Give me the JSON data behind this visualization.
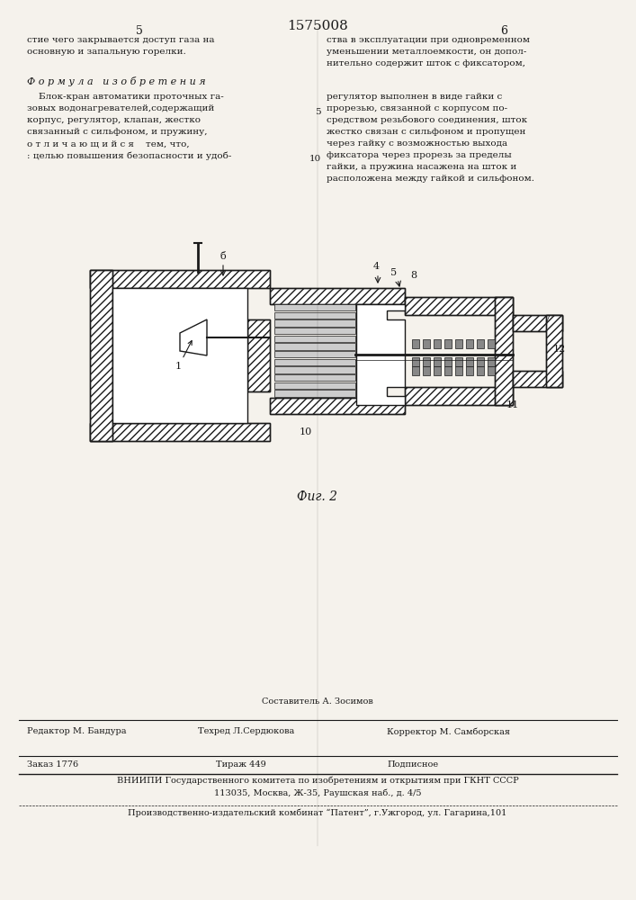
{
  "page_number_center": "1575008",
  "page_left": "5",
  "page_right": "6",
  "bg_color": "#f5f2ec",
  "text_color": "#1a1a1a",
  "title_text": "Ф о р м у л а   и з о б р е т е н и я",
  "left_col_lines": [
    "стие чего закрывается доступ газа на",
    "основную и запальную горелки."
  ],
  "right_col_lines_top": [
    "ства в эксплуатации при одновременном",
    "уменьшении металлоемкости, он допол-",
    "нительно содержит шток с фиксатором,"
  ],
  "formula_left_lines": [
    "    Блок-кран автоматики проточных га-",
    "зовых водонагревателей,содержащий",
    "корпус, регулятор, клапан, жестко",
    "связанный с сильфоном, и пружину,",
    "о т л и ч а ю щ и й с я    тем, что,",
    ": целью повышения безопасности и удоб-"
  ],
  "formula_right_lines": [
    "регулятор выполнен в виде гайки с",
    "прорезью, связанной с корпусом по-",
    "средством резьбового соединения, шток",
    "жестко связан с сильфоном и пропущен",
    "через гайку с возможностью выхода",
    "фиксатора через прорезь за пределы",
    "гайки, а пружина насажена на шток и",
    "расположена между гайкой и сильфоном."
  ],
  "fig_caption": "Фиг. 2",
  "footer_editor": "Редактор М. Бандура",
  "footer_compiler": "Составитель А. Зосимов",
  "footer_techred": "Техред Л.Сердюкова",
  "footer_corrector": "Корректор М. Самборская",
  "footer_order": "Заказ 1776",
  "footer_circulation": "Тираж 449",
  "footer_subscription": "Подписное",
  "footer_vniiipi": "ВНИИПИ Государственного комитета по изобретениям и открытиям при ГКНТ СССР",
  "footer_address": "113035, Москва, Ж-35, Раушская наб., д. 4/5",
  "footer_plant": "Производственно-издательский комбинат “Патент”, г.Ужгород, ул. Гагарина,101"
}
